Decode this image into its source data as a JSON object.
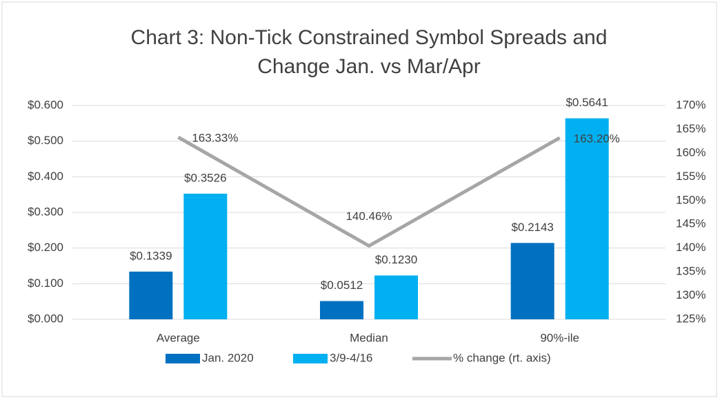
{
  "chart_data": {
    "type": "bar",
    "title": [
      "Chart 3: Non-Tick Constrained Symbol Spreads and",
      "Change Jan. vs Mar/Apr"
    ],
    "categories": [
      "Average",
      "Median",
      "90%-ile"
    ],
    "series": [
      {
        "name": "Jan. 2020",
        "color": "#0070c0",
        "values": [
          0.1339,
          0.0512,
          0.2143
        ],
        "value_labels": [
          "$0.1339",
          "$0.0512",
          "$0.2143"
        ]
      },
      {
        "name": "3/9-4/16",
        "color": "#00b0f0",
        "values": [
          0.3526,
          0.123,
          0.5641
        ],
        "value_labels": [
          "$0.3526",
          "$0.1230",
          "$0.5641"
        ]
      },
      {
        "name": "% change (rt. axis)",
        "color": "#a6a6a6",
        "type": "line",
        "axis": "y2",
        "values": [
          163.33,
          140.46,
          163.2
        ],
        "value_labels": [
          "163.33%",
          "140.46%",
          "163.20%"
        ]
      }
    ],
    "ylim": [
      0,
      0.6
    ],
    "yticks": [
      {
        "value": 0,
        "label": "$0.000"
      },
      {
        "value": 0.1,
        "label": "$0.100"
      },
      {
        "value": 0.2,
        "label": "$0.200"
      },
      {
        "value": 0.3,
        "label": "$0.300"
      },
      {
        "value": 0.4,
        "label": "$0.400"
      },
      {
        "value": 0.5,
        "label": "$0.500"
      },
      {
        "value": 0.6,
        "label": "$0.600"
      }
    ],
    "y2lim": [
      125,
      170
    ],
    "y2ticks": [
      {
        "value": 125,
        "label": "125%"
      },
      {
        "value": 130,
        "label": "130%"
      },
      {
        "value": 135,
        "label": "135%"
      },
      {
        "value": 140,
        "label": "140%"
      },
      {
        "value": 145,
        "label": "145%"
      },
      {
        "value": 150,
        "label": "150%"
      },
      {
        "value": 155,
        "label": "155%"
      },
      {
        "value": 160,
        "label": "160%"
      },
      {
        "value": 165,
        "label": "165%"
      },
      {
        "value": 170,
        "label": "170%"
      }
    ],
    "grid": true,
    "legend": "bottom"
  }
}
